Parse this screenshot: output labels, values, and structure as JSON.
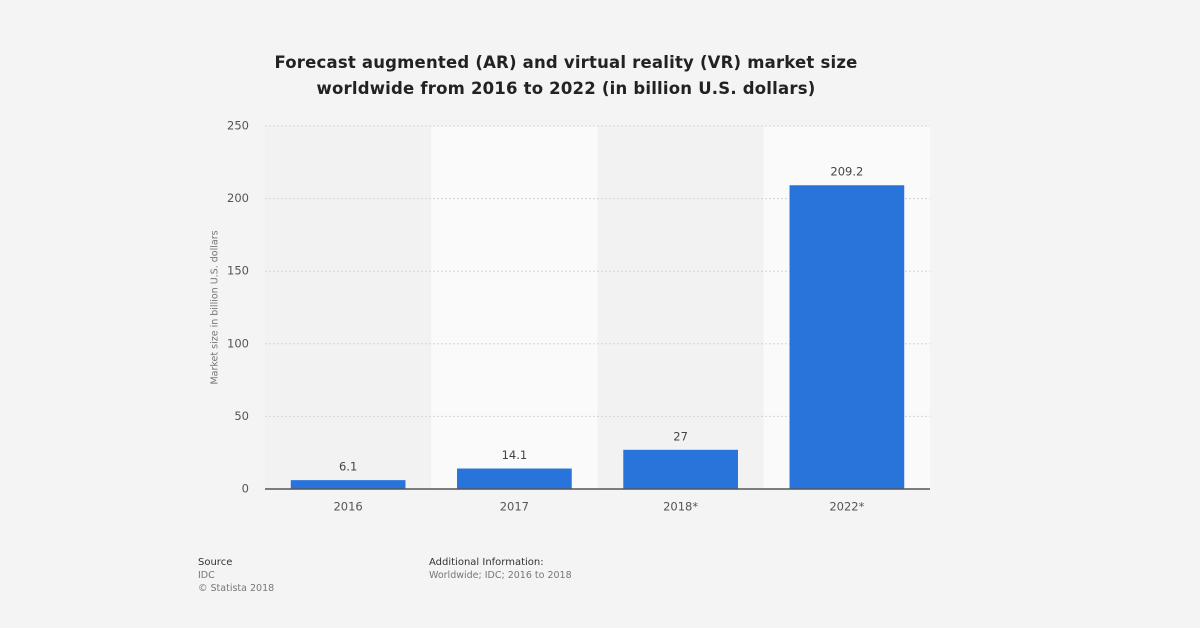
{
  "chart_data": {
    "type": "bar",
    "title": "Forecast augmented (AR) and virtual reality (VR) market size worldwide from 2016 to 2022 (in billion U.S. dollars)",
    "y_label": "Market size in billion U.S. dollars",
    "categories": [
      "2016",
      "2017",
      "2018*",
      "2022*"
    ],
    "values": [
      6.1,
      14.1,
      27,
      209.2
    ],
    "color": "#2874db",
    "ylim": [
      0,
      250
    ],
    "yticks": [
      0,
      50,
      100,
      150,
      200,
      250
    ],
    "grid": true,
    "source_label": "Source",
    "source": "IDC",
    "copyright": "© Statista 2018",
    "additional_info_label": "Additional Information:",
    "additional_info": "Worldwide; IDC; 2016 to 2018"
  }
}
